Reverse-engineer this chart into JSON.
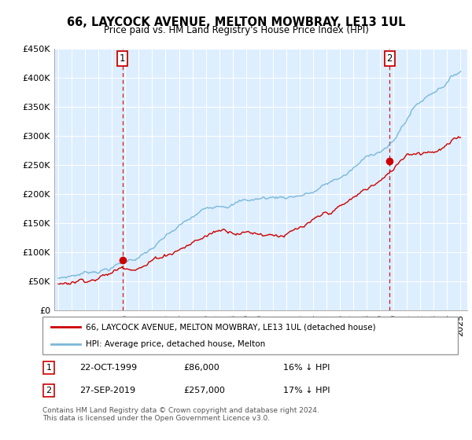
{
  "title": "66, LAYCOCK AVENUE, MELTON MOWBRAY, LE13 1UL",
  "subtitle": "Price paid vs. HM Land Registry's House Price Index (HPI)",
  "sale1_date": "22-OCT-1999",
  "sale1_price": 86000,
  "sale1_label": "1",
  "sale1_hpi_diff": "16% ↓ HPI",
  "sale2_date": "27-SEP-2019",
  "sale2_price": 257000,
  "sale2_label": "2",
  "sale2_hpi_diff": "17% ↓ HPI",
  "legend_line1": "66, LAYCOCK AVENUE, MELTON MOWBRAY, LE13 1UL (detached house)",
  "legend_line2": "HPI: Average price, detached house, Melton",
  "footer": "Contains HM Land Registry data © Crown copyright and database right 2024.\nThis data is licensed under the Open Government Licence v3.0.",
  "hpi_color": "#7ab8d9",
  "price_color": "#cc0000",
  "vline_color": "#cc0000",
  "marker_color": "#cc0000",
  "chart_bg": "#ddeeff",
  "ylim_min": 0,
  "ylim_max": 450000,
  "yticks": [
    0,
    50000,
    100000,
    150000,
    200000,
    250000,
    300000,
    350000,
    400000,
    450000
  ],
  "ytick_labels": [
    "£0",
    "£50K",
    "£100K",
    "£150K",
    "£200K",
    "£250K",
    "£300K",
    "£350K",
    "£400K",
    "£450K"
  ],
  "xstart": 1994.7,
  "xend": 2025.5
}
